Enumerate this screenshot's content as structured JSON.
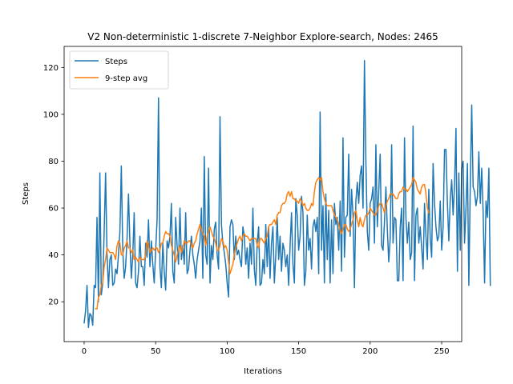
{
  "chart_data": {
    "type": "line",
    "title": "V2 Non-deterministic 1-discrete 7-Neighbor Explore-search,  Nodes: 2465",
    "xlabel": "Iterations",
    "ylabel": "Steps",
    "xlim": [
      -14,
      264
    ],
    "ylim": [
      3,
      129
    ],
    "xticks": [
      0,
      50,
      100,
      150,
      200,
      250
    ],
    "yticks": [
      20,
      40,
      60,
      80,
      100,
      120
    ],
    "grid": false,
    "legend_position": "upper left",
    "series": [
      {
        "name": "Steps",
        "color": "#1f77b4",
        "x_start": 0,
        "values": [
          11,
          16,
          27,
          9,
          15,
          14,
          10,
          27,
          26,
          56,
          20,
          75,
          23,
          28,
          50,
          75,
          40,
          26,
          38,
          40,
          27,
          28,
          34,
          32,
          40,
          50,
          78,
          42,
          30,
          35,
          47,
          66,
          45,
          30,
          40,
          58,
          28,
          26,
          33,
          48,
          35,
          35,
          27,
          45,
          39,
          55,
          35,
          46,
          36,
          28,
          42,
          55,
          107,
          35,
          26,
          45,
          33,
          25,
          46,
          43,
          48,
          62,
          33,
          28,
          56,
          44,
          36,
          60,
          38,
          44,
          36,
          58,
          32,
          34,
          42,
          48,
          40,
          36,
          30,
          38,
          42,
          46,
          60,
          30,
          82,
          40,
          36,
          77,
          28,
          44,
          38,
          51,
          54,
          40,
          34,
          99,
          53,
          45,
          41,
          36,
          28,
          22,
          52,
          55,
          53,
          38,
          48,
          40,
          42,
          38,
          35,
          52,
          48,
          36,
          43,
          30,
          45,
          36,
          60,
          34,
          27,
          45,
          52,
          27,
          28,
          38,
          32,
          53,
          35,
          52,
          30,
          45,
          52,
          28,
          40,
          56,
          38,
          48,
          33,
          45,
          42,
          35,
          40,
          27,
          44,
          58,
          36,
          28,
          64,
          57,
          42,
          48,
          65,
          58,
          27,
          33,
          57,
          42,
          47,
          34,
          52,
          55,
          50,
          56,
          32,
          101,
          42,
          61,
          28,
          66,
          38,
          59,
          28,
          55,
          32,
          62,
          53,
          56,
          42,
          63,
          33,
          90,
          39,
          56,
          57,
          83,
          48,
          68,
          57,
          26,
          63,
          71,
          62,
          74,
          78,
          60,
          123,
          80,
          50,
          42,
          62,
          64,
          69,
          45,
          87,
          52,
          67,
          83,
          44,
          42,
          54,
          69,
          51,
          37,
          47,
          87,
          45,
          56,
          55,
          29,
          29,
          52,
          60,
          29,
          90,
          56,
          45,
          54,
          38,
          41,
          95,
          29,
          57,
          60,
          45,
          52,
          43,
          34,
          62,
          48,
          38,
          68,
          47,
          39,
          79,
          62,
          52,
          46,
          48,
          63,
          42,
          52,
          85,
          85,
          62,
          46,
          64,
          72,
          57,
          70,
          94,
          33,
          75,
          42,
          77,
          80,
          45,
          60,
          79,
          27,
          70,
          104,
          69,
          67,
          61,
          65,
          84,
          62,
          77,
          58,
          28,
          63,
          56,
          77,
          27
        ]
      },
      {
        "name": "9-step avg",
        "color": "#ff7f0e",
        "x_start": 8,
        "values": [
          17,
          17,
          22,
          23,
          27,
          28,
          35,
          38,
          43,
          42,
          41,
          41,
          41,
          40,
          38,
          44,
          46,
          45,
          40,
          40,
          43,
          44,
          46,
          43,
          43,
          41,
          42,
          38,
          39,
          38,
          37,
          39,
          38,
          38,
          38,
          40,
          46,
          44,
          41,
          42,
          43,
          42,
          43,
          43,
          41,
          42,
          45,
          45,
          48,
          50,
          49,
          49,
          48,
          44,
          42,
          40,
          37,
          40,
          42,
          44,
          41,
          43,
          46,
          45,
          45,
          46,
          46,
          44,
          43,
          45,
          46,
          49,
          51,
          53,
          51,
          49,
          48,
          44,
          48,
          50,
          52,
          50,
          48,
          47,
          45,
          42,
          42,
          44,
          47,
          46,
          43,
          44,
          42,
          37,
          32,
          34,
          36,
          40,
          43,
          45,
          47,
          48,
          46,
          48,
          49,
          48,
          48,
          47,
          46,
          47,
          47,
          47,
          47,
          44,
          43,
          47,
          47,
          46,
          45,
          47,
          48,
          52,
          53,
          53,
          54,
          55,
          53,
          57,
          58,
          58,
          61,
          62,
          62,
          63,
          66,
          67,
          65,
          67,
          64,
          64,
          63,
          63,
          62,
          64,
          63,
          61,
          62,
          60,
          59,
          59,
          60,
          62,
          61,
          67,
          71,
          72,
          73,
          72,
          73,
          67,
          64,
          62,
          61,
          61,
          61,
          61,
          59,
          57,
          56,
          55,
          53,
          50,
          49,
          51,
          53,
          53,
          51,
          50,
          51,
          53,
          55,
          58,
          59,
          55,
          52,
          56,
          53,
          52,
          55,
          57,
          57,
          58,
          60,
          59,
          58,
          57,
          57,
          59,
          61,
          62,
          62,
          60,
          58,
          61,
          63,
          64,
          66,
          66,
          66,
          65,
          64,
          64,
          66,
          67,
          67,
          69,
          68,
          68,
          67,
          68,
          69,
          70,
          73,
          72,
          71,
          68,
          67,
          66,
          69,
          70,
          70,
          66,
          60,
          58
        ]
      }
    ]
  }
}
